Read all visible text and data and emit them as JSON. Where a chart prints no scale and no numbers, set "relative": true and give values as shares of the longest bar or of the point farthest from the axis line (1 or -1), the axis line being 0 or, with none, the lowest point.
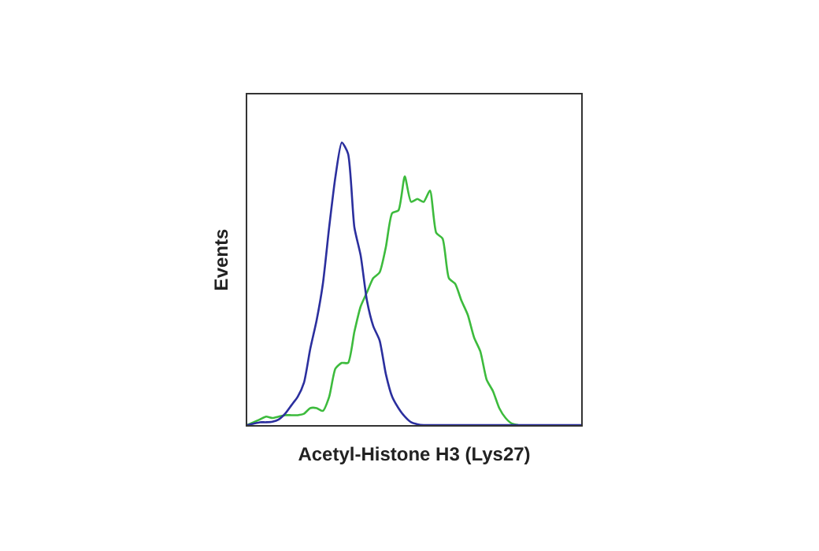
{
  "chart_data": {
    "type": "line",
    "xlabel": "Acetyl-Histone H3 (Lys27)",
    "ylabel": "Events",
    "relative": true,
    "marker": "none",
    "line_style": "solid",
    "categories": [
      null,
      null,
      null,
      null,
      null,
      null,
      null,
      null,
      null,
      null,
      null,
      null,
      null,
      null,
      null,
      null,
      null,
      null,
      null,
      null,
      null,
      null,
      null,
      null,
      null,
      null,
      null,
      null,
      null,
      null,
      null,
      null,
      null,
      null,
      null,
      null,
      null,
      null,
      null,
      null,
      null,
      null,
      null,
      null,
      null,
      null,
      null,
      null,
      null,
      null,
      null,
      null,
      null,
      null
    ],
    "series": [
      {
        "color": "#2b2f9e",
        "values": [
          0,
          0.005,
          0.01,
          0.01,
          0.012,
          0.02,
          0.04,
          0.07,
          0.1,
          0.15,
          0.27,
          0.37,
          0.5,
          0.7,
          0.88,
          1,
          0.96,
          0.7,
          0.6,
          0.44,
          0.35,
          0.3,
          0.18,
          0.1,
          0.06,
          0.03,
          0.01,
          0.003,
          0,
          0,
          0,
          0,
          0,
          0,
          0,
          0,
          0,
          0,
          0,
          0,
          0,
          0,
          0,
          0,
          0,
          0,
          0,
          0,
          0,
          0,
          0,
          0,
          0,
          0
        ]
      },
      {
        "color": "#3dbb3d",
        "values": [
          0,
          0.01,
          0.02,
          0.03,
          0.025,
          0.03,
          0.035,
          0.035,
          0.035,
          0.04,
          0.06,
          0.06,
          0.05,
          0.1,
          0.2,
          0.22,
          0.22,
          0.33,
          0.42,
          0.47,
          0.52,
          0.54,
          0.63,
          0.75,
          0.76,
          0.88,
          0.79,
          0.8,
          0.79,
          0.83,
          0.68,
          0.66,
          0.52,
          0.5,
          0.44,
          0.39,
          0.31,
          0.26,
          0.16,
          0.12,
          0.06,
          0.025,
          0.005,
          0,
          null,
          null,
          null,
          null,
          null,
          null,
          null,
          null,
          null,
          null
        ]
      }
    ]
  }
}
